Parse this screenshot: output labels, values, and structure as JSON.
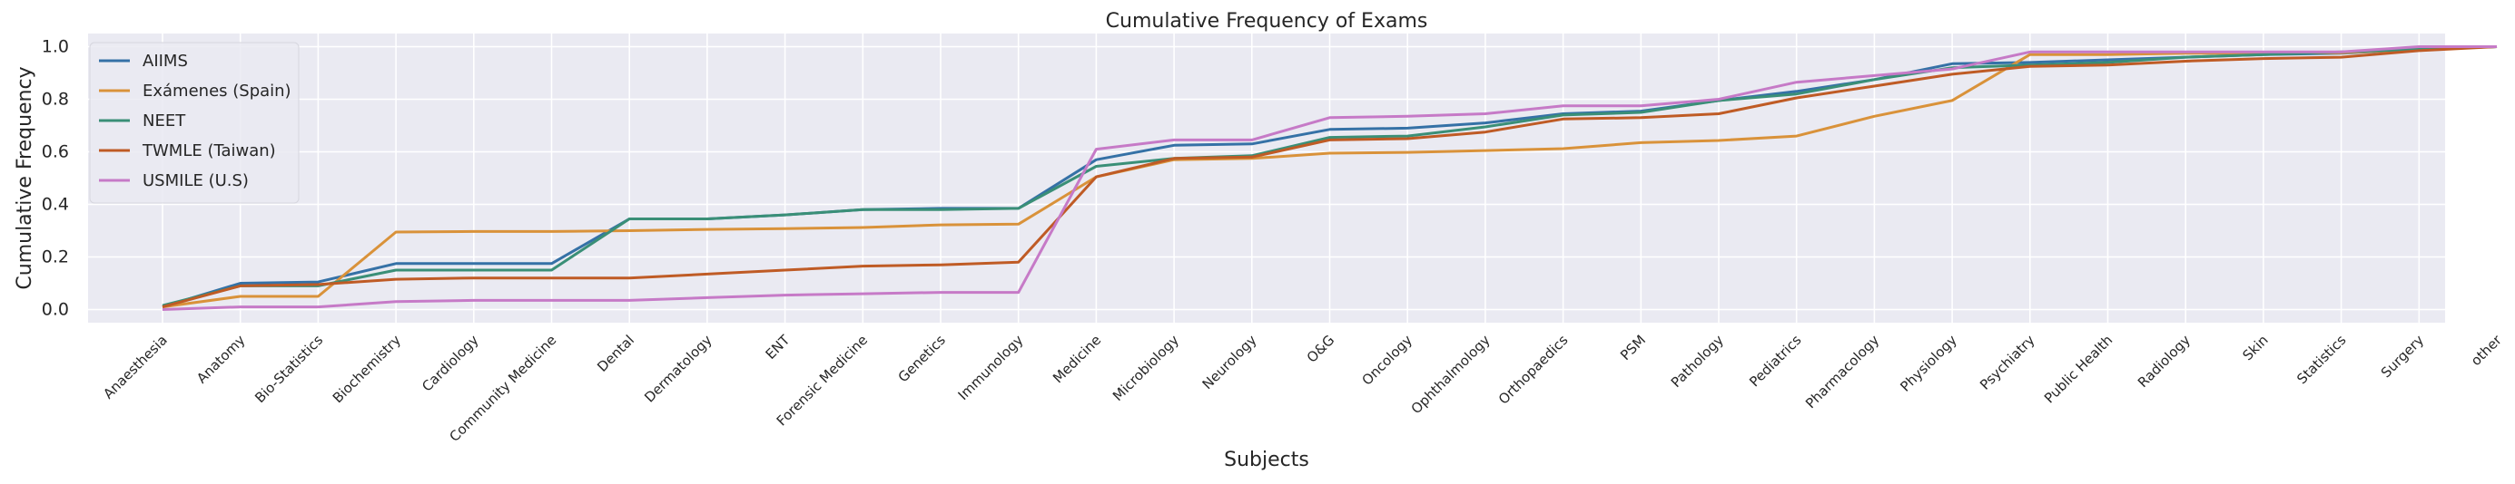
{
  "chart_data": {
    "type": "line",
    "title": "Cumulative Frequency of Exams",
    "xlabel": "Subjects",
    "ylabel": "Cumulative Frequency",
    "ylim": [
      -0.05,
      1.05
    ],
    "y_ticks": [
      0.0,
      0.2,
      0.4,
      0.6,
      0.8,
      1.0
    ],
    "y_tick_labels": [
      "0.0",
      "0.2",
      "0.4",
      "0.6",
      "0.8",
      "1.0"
    ],
    "grid": true,
    "legend_position": "upper-left",
    "background_color": "#eaeaf2",
    "grid_color": "#ffffff",
    "categories": [
      "Anaesthesia",
      "Anatomy",
      "Bio-Statistics",
      "Biochemistry",
      "Cardiology",
      "Community Medicine",
      "Dental",
      "Dermatology",
      "ENT",
      "Forensic Medicine",
      "Genetics",
      "Immunology",
      "Medicine",
      "Microbiology",
      "Neurology",
      "O&G",
      "Oncology",
      "Ophthalmology",
      "Orthopaedics",
      "PSM",
      "Pathology",
      "Pediatrics",
      "Pharmacology",
      "Physiology",
      "Psychiatry",
      "Public Health",
      "Radiology",
      "Skin",
      "Statistics",
      "Surgery",
      "other"
    ],
    "series": [
      {
        "name": "AIIMS",
        "color": "#3571a6",
        "values": [
          0.01,
          0.1,
          0.105,
          0.175,
          0.175,
          0.175,
          0.345,
          0.345,
          0.36,
          0.38,
          0.385,
          0.385,
          0.57,
          0.625,
          0.63,
          0.685,
          0.69,
          0.71,
          0.745,
          0.755,
          0.795,
          0.83,
          0.875,
          0.935,
          0.94,
          0.95,
          0.96,
          0.97,
          0.975,
          0.99,
          1.0
        ]
      },
      {
        "name": "Exámenes (Spain)",
        "color": "#d9923a",
        "values": [
          0.01,
          0.05,
          0.05,
          0.295,
          0.297,
          0.297,
          0.3,
          0.305,
          0.308,
          0.312,
          0.322,
          0.325,
          0.505,
          0.57,
          0.575,
          0.595,
          0.598,
          0.605,
          0.612,
          0.635,
          0.643,
          0.66,
          0.735,
          0.795,
          0.97,
          0.97,
          0.975,
          0.975,
          0.977,
          0.99,
          1.0
        ]
      },
      {
        "name": "NEET",
        "color": "#3a8f77",
        "values": [
          0.015,
          0.09,
          0.09,
          0.15,
          0.15,
          0.15,
          0.345,
          0.345,
          0.36,
          0.38,
          0.38,
          0.385,
          0.545,
          0.575,
          0.585,
          0.655,
          0.66,
          0.695,
          0.74,
          0.75,
          0.795,
          0.82,
          0.875,
          0.92,
          0.93,
          0.94,
          0.96,
          0.97,
          0.98,
          0.99,
          1.0
        ]
      },
      {
        "name": "TWMLE (Taiwan)",
        "color": "#bf5b25",
        "values": [
          0.01,
          0.09,
          0.095,
          0.115,
          0.12,
          0.12,
          0.12,
          0.135,
          0.15,
          0.165,
          0.17,
          0.18,
          0.505,
          0.575,
          0.58,
          0.645,
          0.65,
          0.675,
          0.725,
          0.73,
          0.745,
          0.805,
          0.85,
          0.895,
          0.925,
          0.93,
          0.945,
          0.955,
          0.96,
          0.985,
          1.0
        ]
      },
      {
        "name": "USMILE (U.S)",
        "color": "#c67ac7",
        "values": [
          0.0,
          0.01,
          0.01,
          0.03,
          0.035,
          0.035,
          0.035,
          0.045,
          0.055,
          0.06,
          0.065,
          0.065,
          0.61,
          0.645,
          0.645,
          0.73,
          0.735,
          0.745,
          0.775,
          0.775,
          0.8,
          0.865,
          0.89,
          0.915,
          0.98,
          0.98,
          0.98,
          0.98,
          0.98,
          1.0,
          1.0
        ]
      }
    ]
  }
}
